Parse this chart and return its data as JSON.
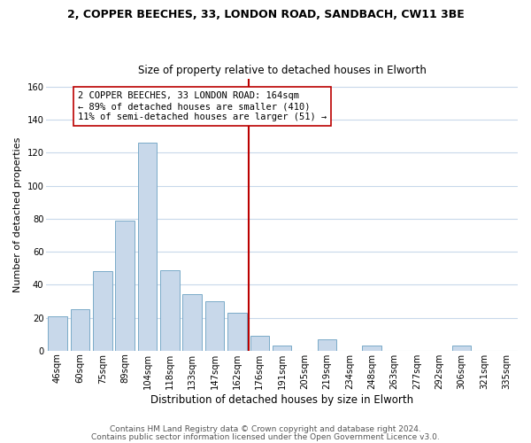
{
  "title": "2, COPPER BEECHES, 33, LONDON ROAD, SANDBACH, CW11 3BE",
  "subtitle": "Size of property relative to detached houses in Elworth",
  "xlabel": "Distribution of detached houses by size in Elworth",
  "ylabel": "Number of detached properties",
  "bar_labels": [
    "46sqm",
    "60sqm",
    "75sqm",
    "89sqm",
    "104sqm",
    "118sqm",
    "133sqm",
    "147sqm",
    "162sqm",
    "176sqm",
    "191sqm",
    "205sqm",
    "219sqm",
    "234sqm",
    "248sqm",
    "263sqm",
    "277sqm",
    "292sqm",
    "306sqm",
    "321sqm",
    "335sqm"
  ],
  "bar_heights": [
    21,
    25,
    48,
    79,
    126,
    49,
    34,
    30,
    23,
    9,
    3,
    0,
    7,
    0,
    3,
    0,
    0,
    0,
    3,
    0,
    0
  ],
  "bar_color": "#c8d8ea",
  "bar_edge_color": "#7aaac8",
  "vline_index": 8.5,
  "vline_color": "#bb0000",
  "annotation_text": "2 COPPER BEECHES, 33 LONDON ROAD: 164sqm\n← 89% of detached houses are smaller (410)\n11% of semi-detached houses are larger (51) →",
  "annotation_box_facecolor": "#ffffff",
  "annotation_box_edgecolor": "#bb0000",
  "ylim": [
    0,
    165
  ],
  "yticks": [
    0,
    20,
    40,
    60,
    80,
    100,
    120,
    140,
    160
  ],
  "footer1": "Contains HM Land Registry data © Crown copyright and database right 2024.",
  "footer2": "Contains public sector information licensed under the Open Government Licence v3.0.",
  "bg_color": "#ffffff",
  "grid_color": "#c8d8ea",
  "title_fontsize": 9.0,
  "subtitle_fontsize": 8.5,
  "ylabel_fontsize": 8.0,
  "xlabel_fontsize": 8.5,
  "tick_fontsize": 7.2,
  "annot_fontsize": 7.5,
  "footer_fontsize": 6.5
}
